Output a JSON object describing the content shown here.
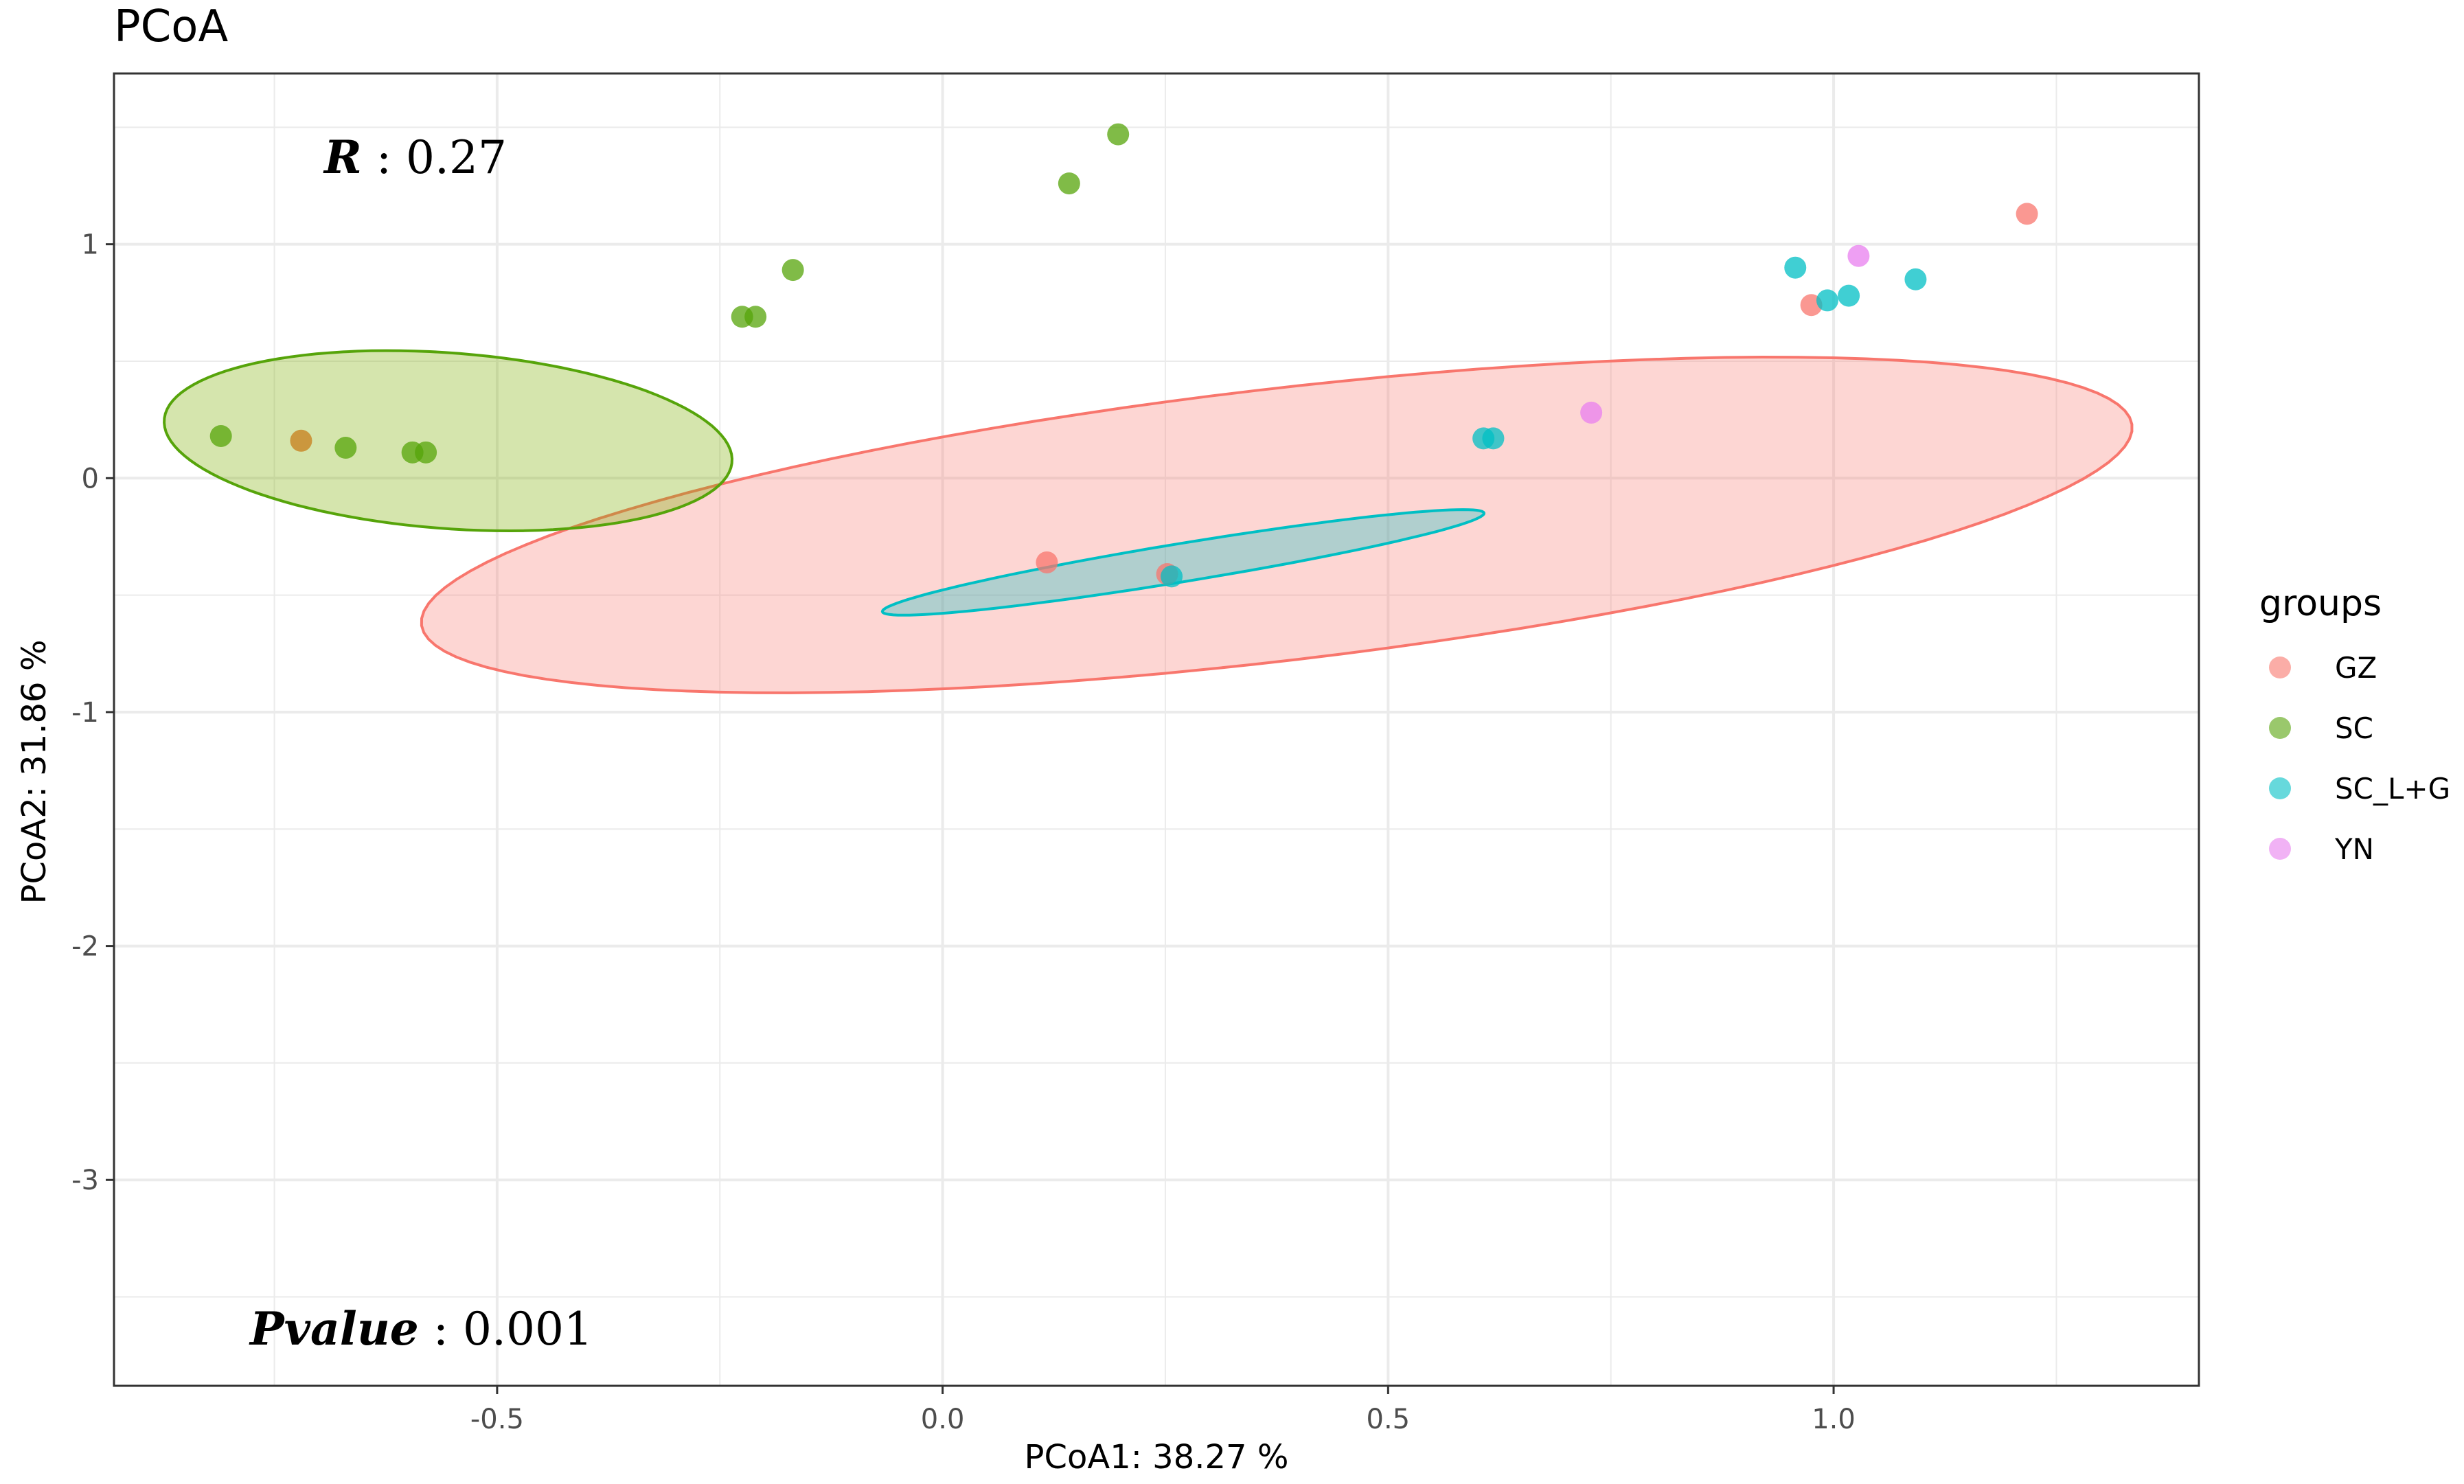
{
  "chart_data": {
    "type": "scatter",
    "title": "PCoA",
    "xlabel": "PCoA1:  38.27 %",
    "ylabel": "PCoA2:  31.86 %",
    "xlim": [
      -0.93,
      1.41
    ],
    "ylim": [
      -3.88,
      1.73
    ],
    "x_ticks": [
      -0.5,
      0.0,
      0.5,
      1.0
    ],
    "x_tick_labels": [
      "-0.5",
      "0.0",
      "0.5",
      "1.0"
    ],
    "y_ticks": [
      -3,
      -2,
      -1,
      0,
      1
    ],
    "y_tick_labels": [
      "-3",
      "-2",
      "-1",
      "0",
      "1"
    ],
    "grid": true,
    "legend": {
      "title": "groups",
      "position": "right",
      "entries": [
        "GZ",
        "SC",
        "SC_L+G",
        "YN"
      ]
    },
    "annotations": {
      "r_label": "R",
      "r_value": " : 0.27",
      "p_label": "Pvalue",
      "p_value": " : 0.001"
    },
    "colors": {
      "GZ": "#F8766D",
      "SC": "#56A40A",
      "SC_L+G": "#00BFC4",
      "YN": "#E87FEF"
    },
    "series": [
      {
        "name": "GZ",
        "color": "#F8766D",
        "points": [
          [
            0.117,
            -0.36
          ],
          [
            0.252,
            -0.41
          ],
          [
            0.975,
            0.74
          ],
          [
            1.217,
            1.13
          ]
        ]
      },
      {
        "name": "SC",
        "color": "#56A40A",
        "points": [
          [
            -0.81,
            0.18
          ],
          [
            -0.67,
            0.13
          ],
          [
            -0.595,
            0.11
          ],
          [
            -0.58,
            0.11
          ],
          [
            -0.225,
            0.69
          ],
          [
            -0.21,
            0.69
          ],
          [
            -0.168,
            0.89
          ],
          [
            0.142,
            1.26
          ],
          [
            0.197,
            1.47
          ]
        ]
      },
      {
        "name": "SC_L+G",
        "color": "#00BFC4",
        "points": [
          [
            0.607,
            0.17
          ],
          [
            0.618,
            0.17
          ],
          [
            0.257,
            -0.42
          ],
          [
            0.957,
            0.9
          ],
          [
            0.993,
            0.76
          ],
          [
            1.017,
            0.78
          ],
          [
            1.092,
            0.85
          ]
        ]
      },
      {
        "name": "YN",
        "color": "#E87FEF",
        "points": [
          [
            0.728,
            0.28
          ],
          [
            1.028,
            0.95
          ]
        ]
      }
    ],
    "extra_points": [
      {
        "x": -0.72,
        "y": 0.16,
        "color": "#C98A2A"
      }
    ],
    "ellipses": [
      {
        "group": "GZ",
        "cx": 0.375,
        "cy": -0.2,
        "rx": 1.08,
        "ry": 0.052,
        "angle_deg": 31.5,
        "stroke": "#F8766D",
        "fill": "rgba(248,118,109,0.30)"
      },
      {
        "group": "SC",
        "cx": -0.555,
        "cy": 0.16,
        "rx": 0.3,
        "ry": 0.04,
        "angle_deg": 24.0,
        "stroke": "#56A40A",
        "fill": "rgba(124,174,0,0.32)"
      },
      {
        "group": "SC_L+G",
        "cx": 0.27,
        "cy": -0.36,
        "rx": 0.4,
        "ry": 0.007,
        "angle_deg": 33.0,
        "stroke": "#00BFC4",
        "fill": "rgba(0,191,196,0.30)"
      }
    ]
  }
}
